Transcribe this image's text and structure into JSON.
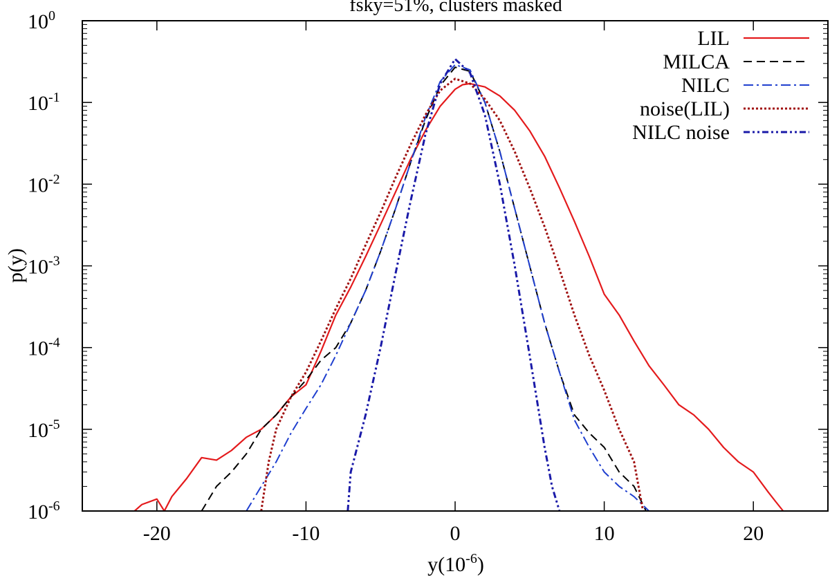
{
  "chart_data": {
    "type": "line",
    "title": "fsky=51%, clusters masked",
    "xlabel": "y(10",
    "xlabel_exp": "-6",
    "xlabel_end": ")",
    "ylabel": "p(y)",
    "xlim": [
      -25,
      25
    ],
    "ylim": [
      1e-06,
      1
    ],
    "yscale": "log",
    "grid": false,
    "legend_position": "top-right",
    "x_ticks": [
      {
        "value": -20,
        "label": "-20"
      },
      {
        "value": -10,
        "label": "-10"
      },
      {
        "value": 0,
        "label": "0"
      },
      {
        "value": 10,
        "label": "10"
      },
      {
        "value": 20,
        "label": "20"
      }
    ],
    "y_ticks": [
      {
        "value": 1e-06,
        "base": "10",
        "exp": "-6"
      },
      {
        "value": 1e-05,
        "base": "10",
        "exp": "-5"
      },
      {
        "value": 0.0001,
        "base": "10",
        "exp": "-4"
      },
      {
        "value": 0.001,
        "base": "10",
        "exp": "-3"
      },
      {
        "value": 0.01,
        "base": "10",
        "exp": "-2"
      },
      {
        "value": 0.1,
        "base": "10",
        "exp": "-1"
      },
      {
        "value": 1,
        "base": "10",
        "exp": "0"
      }
    ],
    "series": [
      {
        "name": "LIL",
        "color": "#e41a1c",
        "style": "solid",
        "width": 2.2,
        "points": [
          [
            -21.5,
            1e-06
          ],
          [
            -21,
            1.2e-06
          ],
          [
            -20,
            1.4e-06
          ],
          [
            -19.5,
            1e-06
          ],
          [
            -19,
            1.5e-06
          ],
          [
            -18,
            2.5e-06
          ],
          [
            -17,
            4.5e-06
          ],
          [
            -16,
            4.2e-06
          ],
          [
            -15,
            5.5e-06
          ],
          [
            -14,
            8e-06
          ],
          [
            -13,
            1e-05
          ],
          [
            -12,
            1.5e-05
          ],
          [
            -11,
            2.5e-05
          ],
          [
            -10,
            3.5e-05
          ],
          [
            -9,
            9e-05
          ],
          [
            -8,
            0.00025
          ],
          [
            -7,
            0.00055
          ],
          [
            -6,
            0.0013
          ],
          [
            -5,
            0.0032
          ],
          [
            -4,
            0.008
          ],
          [
            -3,
            0.02
          ],
          [
            -2,
            0.045
          ],
          [
            -1,
            0.09
          ],
          [
            0,
            0.145
          ],
          [
            0.5,
            0.165
          ],
          [
            1,
            0.17
          ],
          [
            2,
            0.155
          ],
          [
            3,
            0.12
          ],
          [
            4,
            0.08
          ],
          [
            5,
            0.045
          ],
          [
            6,
            0.022
          ],
          [
            7,
            0.009
          ],
          [
            8,
            0.0035
          ],
          [
            9,
            0.0013
          ],
          [
            10,
            0.00045
          ],
          [
            11,
            0.00025
          ],
          [
            12,
            0.00012
          ],
          [
            13,
            6e-05
          ],
          [
            14,
            3.5e-05
          ],
          [
            15,
            2e-05
          ],
          [
            16,
            1.5e-05
          ],
          [
            17,
            1e-05
          ],
          [
            18,
            6e-06
          ],
          [
            19,
            4e-06
          ],
          [
            20,
            3e-06
          ],
          [
            21,
            1.7e-06
          ],
          [
            21.5,
            1.3e-06
          ],
          [
            22,
            1e-06
          ]
        ]
      },
      {
        "name": "MILCA",
        "color": "#000000",
        "style": "dashed",
        "width": 2,
        "points": [
          [
            -17,
            1e-06
          ],
          [
            -16,
            2e-06
          ],
          [
            -15,
            3e-06
          ],
          [
            -14,
            5e-06
          ],
          [
            -13,
            1e-05
          ],
          [
            -12,
            1.5e-05
          ],
          [
            -11,
            2.5e-05
          ],
          [
            -10,
            4e-05
          ],
          [
            -9,
            7e-05
          ],
          [
            -8,
            0.0001
          ],
          [
            -7,
            0.0002
          ],
          [
            -6,
            0.0005
          ],
          [
            -5,
            0.0015
          ],
          [
            -4,
            0.005
          ],
          [
            -3,
            0.018
          ],
          [
            -2,
            0.06
          ],
          [
            -1,
            0.16
          ],
          [
            0,
            0.27
          ],
          [
            1,
            0.24
          ],
          [
            2,
            0.1
          ],
          [
            3,
            0.025
          ],
          [
            4,
            0.005
          ],
          [
            5,
            0.001
          ],
          [
            6,
            0.0002
          ],
          [
            7,
            5e-05
          ],
          [
            8,
            1.5e-05
          ],
          [
            9,
            9e-06
          ],
          [
            10,
            6e-06
          ],
          [
            11,
            3e-06
          ],
          [
            12,
            2e-06
          ],
          [
            12.8,
            1e-06
          ]
        ]
      },
      {
        "name": "NILC",
        "color": "#1f3fcf",
        "style": "dashdot",
        "width": 2,
        "points": [
          [
            -14,
            1e-06
          ],
          [
            -13,
            2e-06
          ],
          [
            -12,
            4e-06
          ],
          [
            -11,
            9e-06
          ],
          [
            -10,
            1.8e-05
          ],
          [
            -9,
            3.5e-05
          ],
          [
            -8,
            8e-05
          ],
          [
            -7,
            0.0002
          ],
          [
            -6,
            0.0005
          ],
          [
            -5,
            0.0015
          ],
          [
            -4,
            0.005
          ],
          [
            -3,
            0.018
          ],
          [
            -2,
            0.065
          ],
          [
            -1,
            0.18
          ],
          [
            0,
            0.29
          ],
          [
            1,
            0.25
          ],
          [
            2,
            0.1
          ],
          [
            3,
            0.025
          ],
          [
            4,
            0.005
          ],
          [
            5,
            0.001
          ],
          [
            6,
            0.0002
          ],
          [
            7,
            5e-05
          ],
          [
            8,
            1.3e-05
          ],
          [
            9,
            6e-06
          ],
          [
            10,
            3e-06
          ],
          [
            11,
            2e-06
          ],
          [
            12,
            1.5e-06
          ],
          [
            13,
            1e-06
          ]
        ]
      },
      {
        "name": "noise(LIL)",
        "color": "#a01010",
        "style": "dotted",
        "width": 3,
        "points": [
          [
            -13,
            1e-06
          ],
          [
            -12.5,
            4e-06
          ],
          [
            -12,
            1e-05
          ],
          [
            -11,
            2.5e-05
          ],
          [
            -10,
            5e-05
          ],
          [
            -9,
            0.00012
          ],
          [
            -8,
            0.0003
          ],
          [
            -7,
            0.0007
          ],
          [
            -6,
            0.0018
          ],
          [
            -5,
            0.0045
          ],
          [
            -4,
            0.012
          ],
          [
            -3,
            0.03
          ],
          [
            -2,
            0.07
          ],
          [
            -1,
            0.14
          ],
          [
            0,
            0.195
          ],
          [
            1,
            0.17
          ],
          [
            2,
            0.11
          ],
          [
            3,
            0.06
          ],
          [
            4,
            0.025
          ],
          [
            5,
            0.009
          ],
          [
            6,
            0.003
          ],
          [
            7,
            0.0009
          ],
          [
            8,
            0.00025
          ],
          [
            9,
            8e-05
          ],
          [
            10,
            3e-05
          ],
          [
            11,
            1e-05
          ],
          [
            12,
            4e-06
          ],
          [
            12.6,
            1e-06
          ]
        ]
      },
      {
        "name": "NILC noise",
        "color": "#1a1aa8",
        "style": "dashdotdot",
        "width": 3,
        "points": [
          [
            -7.2,
            1e-06
          ],
          [
            -7,
            3e-06
          ],
          [
            -6,
            1.5e-05
          ],
          [
            -5,
            0.0001
          ],
          [
            -4,
            0.0008
          ],
          [
            -3,
            0.006
          ],
          [
            -2,
            0.04
          ],
          [
            -1,
            0.17
          ],
          [
            0,
            0.34
          ],
          [
            1,
            0.23
          ],
          [
            2,
            0.07
          ],
          [
            3,
            0.01
          ],
          [
            4,
            0.001
          ],
          [
            5,
            8e-05
          ],
          [
            6,
            6e-06
          ],
          [
            6.5,
            2e-06
          ],
          [
            7,
            1e-06
          ]
        ]
      }
    ]
  }
}
